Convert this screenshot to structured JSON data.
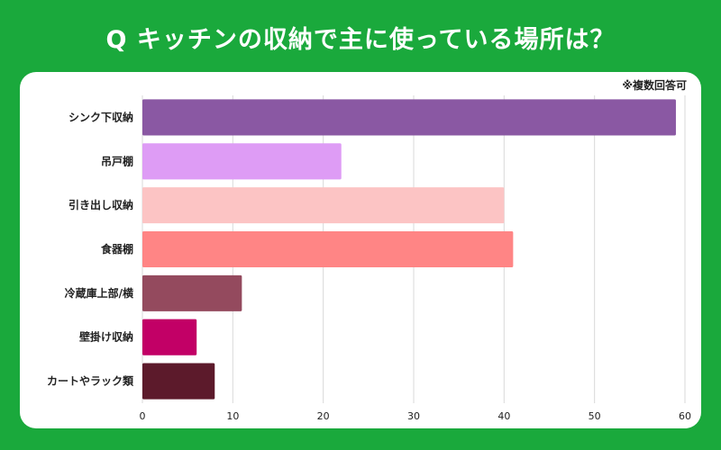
{
  "title": "Q キッチンの収納で主に使っている場所は？",
  "note": "※複数回答可",
  "chart_data": {
    "type": "bar",
    "orientation": "horizontal",
    "title": "Q キッチンの収納で主に使っている場所は？",
    "categories": [
      "シンク下収納",
      "吊戸棚",
      "引き出し収納",
      "食器棚",
      "冷蔵庫上部/横",
      "壁掛け収納",
      "カートやラック類"
    ],
    "values": [
      59,
      22,
      40,
      41,
      11,
      6,
      8
    ],
    "colors": [
      "#8a58a3",
      "#de9cf5",
      "#fcc4c4",
      "#ff8585",
      "#944a5e",
      "#c20066",
      "#5c1a2b"
    ],
    "xlim": [
      0,
      60
    ],
    "xticks": [
      0,
      10,
      20,
      30,
      40,
      50,
      60
    ],
    "grid": true,
    "legend": "none"
  }
}
